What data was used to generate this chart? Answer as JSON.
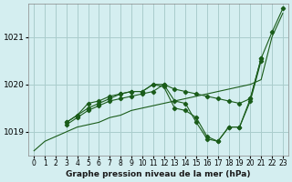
{
  "title": "Graphe pression niveau de la mer (hPa)",
  "background_color": "#d4eef0",
  "grid_color": "#aacccc",
  "line_color": "#1a5c1a",
  "x_labels": [
    "0",
    "1",
    "2",
    "3",
    "4",
    "5",
    "6",
    "7",
    "8",
    "9",
    "10",
    "11",
    "12",
    "13",
    "14",
    "15",
    "16",
    "17",
    "18",
    "19",
    "20",
    "21",
    "22",
    "23"
  ],
  "ylim": [
    1018.5,
    1021.7
  ],
  "yticks": [
    1019,
    1020,
    1021
  ],
  "series": [
    [
      1018.6,
      1018.8,
      null,
      1019.0,
      1019.1,
      1019.15,
      1019.2,
      1019.3,
      1019.35,
      1019.45,
      1019.5,
      1019.55,
      1019.6,
      1019.65,
      1019.7,
      1019.75,
      1019.8,
      1019.85,
      1019.9,
      1019.95,
      1020.0,
      1020.1,
      1021.0,
      1021.5
    ],
    [
      null,
      null,
      null,
      1019.15,
      1019.3,
      1019.45,
      1019.55,
      1019.65,
      1019.7,
      1019.75,
      1019.8,
      1019.85,
      1020.0,
      1019.9,
      1019.85,
      1019.8,
      1019.75,
      1019.7,
      1019.65,
      1019.6,
      1019.7,
      1020.55,
      1021.1,
      1021.6
    ],
    [
      null,
      null,
      null,
      1019.2,
      1019.35,
      1019.5,
      1019.6,
      1019.7,
      1019.8,
      1019.85,
      1019.85,
      1020.0,
      1020.0,
      1019.65,
      1019.6,
      1019.2,
      1018.85,
      1018.8,
      1019.1,
      1019.1,
      1019.7,
      1020.55,
      null,
      null
    ],
    [
      null,
      null,
      null,
      1019.2,
      1019.35,
      1019.6,
      1019.65,
      1019.75,
      1019.8,
      1019.85,
      1019.85,
      1020.0,
      1019.95,
      1019.5,
      1019.45,
      1019.3,
      1018.9,
      1018.8,
      1019.1,
      1019.1,
      1019.65,
      1020.5,
      null,
      null
    ]
  ]
}
